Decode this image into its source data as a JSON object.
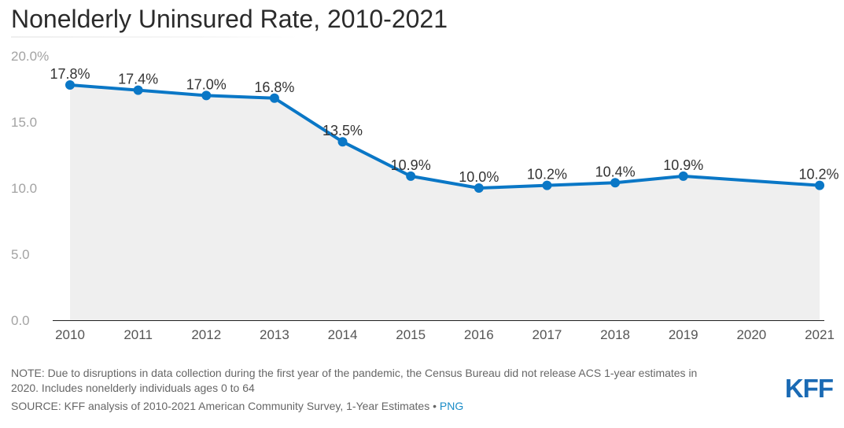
{
  "header": {
    "title": "Nonelderly Uninsured Rate, 2010-2021"
  },
  "chart_data": {
    "type": "area",
    "title": "Nonelderly Uninsured Rate, 2010-2021",
    "x": [
      "2010",
      "2011",
      "2012",
      "2013",
      "2014",
      "2015",
      "2016",
      "2017",
      "2018",
      "2019",
      "2020",
      "2021"
    ],
    "series": [
      {
        "values": [
          17.8,
          17.4,
          17.0,
          16.8,
          13.5,
          10.9,
          10.0,
          10.2,
          10.4,
          10.9,
          null,
          10.2
        ],
        "labels": [
          "17.8%",
          "17.4%",
          "17.0%",
          "16.8%",
          "13.5%",
          "10.9%",
          "10.0%",
          "10.2%",
          "10.4%",
          "10.9%",
          "",
          "10.2%"
        ]
      }
    ],
    "ylim": [
      0,
      20
    ],
    "yticks": [
      0,
      5,
      10,
      15,
      20
    ],
    "ytick_labels": [
      "0.0",
      "5.0",
      "10.0",
      "15.0",
      "20.0%"
    ],
    "grid": false,
    "colors": {
      "line": "#0a77c6",
      "fill": "#efefef",
      "baseline": "#222222"
    }
  },
  "footer": {
    "note_line1": "NOTE: Due to disruptions in data collection during the first year of the pandemic, the Census Bureau did not release ACS 1-year estimates in",
    "note_line2": "2020. Includes nonelderly individuals ages 0 to 64",
    "source_text": "SOURCE: KFF analysis of 2010-2021 American Community Survey, 1-Year Estimates • ",
    "source_link": "PNG"
  },
  "logo": {
    "text": "KFF",
    "color": "#1a6ab4"
  }
}
